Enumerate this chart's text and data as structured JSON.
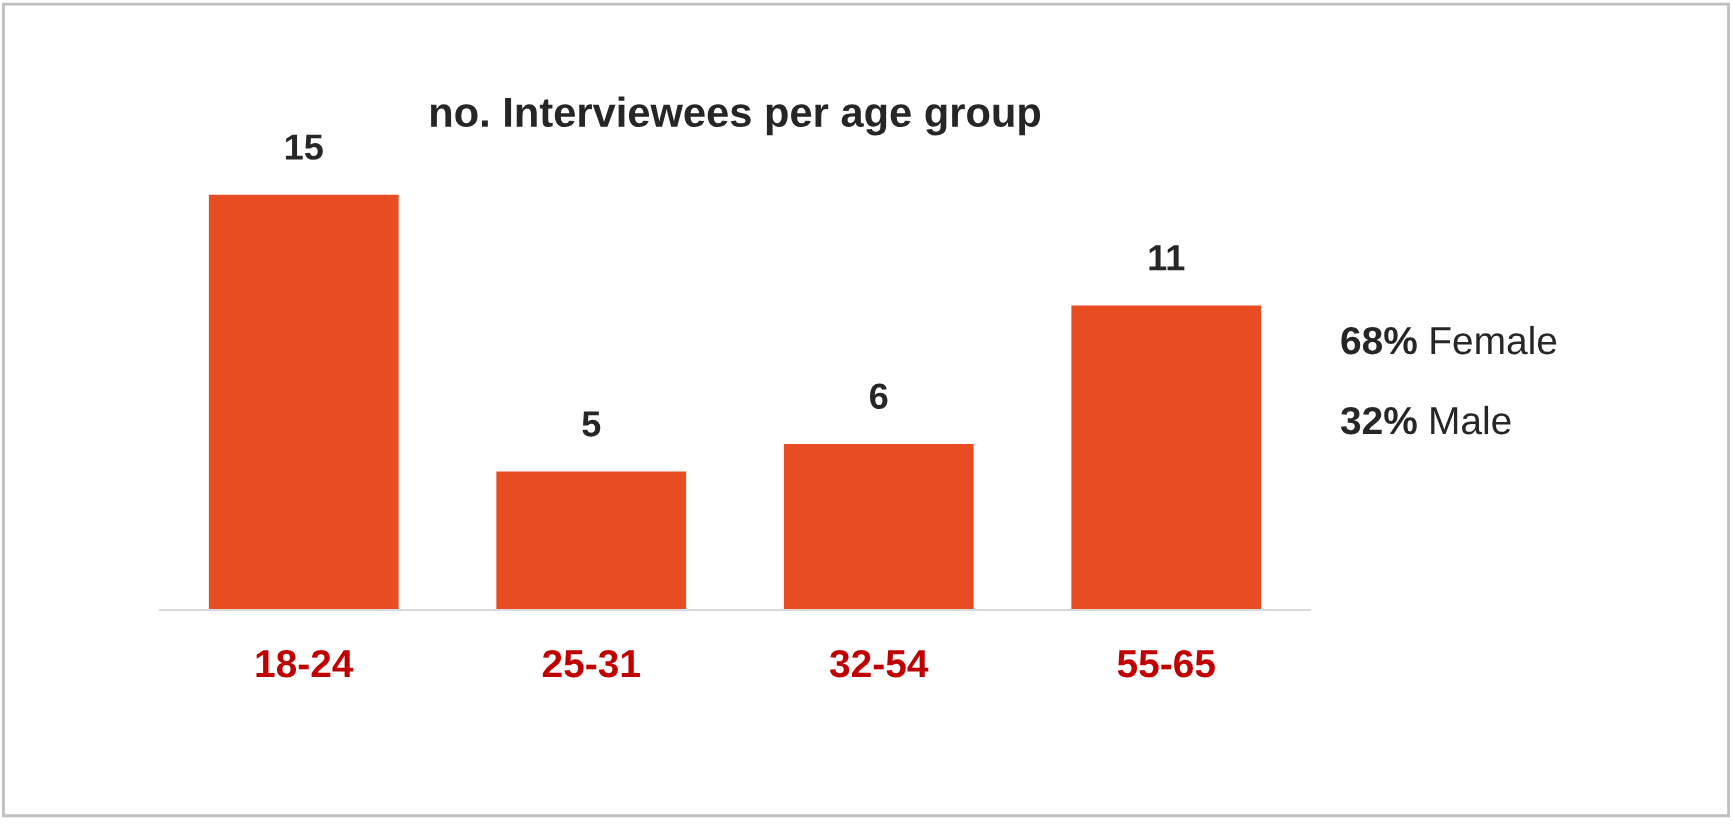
{
  "chart_data": {
    "type": "bar",
    "title": "no. Interviewees per age group",
    "categories": [
      "18-24",
      "25-31",
      "32-54",
      "55-65"
    ],
    "values": [
      15,
      5,
      6,
      11
    ],
    "color": "#e84c22",
    "data_labels": true,
    "annotations": [
      "68% Female",
      "32% Male"
    ],
    "grid": false,
    "legend": false
  }
}
